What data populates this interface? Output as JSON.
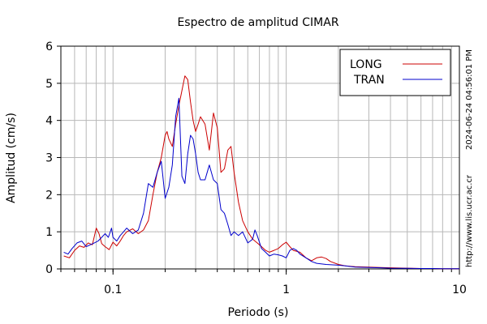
{
  "chart_data": {
    "type": "line",
    "title": "Espectro de amplitud CIMAR",
    "xlabel": "Periodo (s)",
    "ylabel": "Amplitud (cm/s)",
    "xscale": "log",
    "xlim": [
      0.05,
      10
    ],
    "ylim": [
      0,
      6
    ],
    "xtick_labels": [
      "0.1",
      "1",
      "10"
    ],
    "xtick_values": [
      0.1,
      1,
      10
    ],
    "ytick_values": [
      0,
      1,
      2,
      3,
      4,
      5,
      6
    ],
    "grid": true,
    "legend_position": "top-right",
    "series": [
      {
        "name": "LONG",
        "color": "#cc0000",
        "points": [
          [
            0.052,
            0.35
          ],
          [
            0.056,
            0.3
          ],
          [
            0.06,
            0.5
          ],
          [
            0.064,
            0.62
          ],
          [
            0.068,
            0.58
          ],
          [
            0.072,
            0.7
          ],
          [
            0.076,
            0.65
          ],
          [
            0.08,
            1.1
          ],
          [
            0.083,
            0.95
          ],
          [
            0.086,
            0.68
          ],
          [
            0.09,
            0.6
          ],
          [
            0.095,
            0.52
          ],
          [
            0.1,
            0.72
          ],
          [
            0.105,
            0.62
          ],
          [
            0.11,
            0.75
          ],
          [
            0.115,
            0.9
          ],
          [
            0.12,
            1.0
          ],
          [
            0.13,
            1.08
          ],
          [
            0.14,
            0.95
          ],
          [
            0.15,
            1.05
          ],
          [
            0.16,
            1.3
          ],
          [
            0.17,
            2.0
          ],
          [
            0.18,
            2.6
          ],
          [
            0.19,
            3.0
          ],
          [
            0.2,
            3.6
          ],
          [
            0.205,
            3.7
          ],
          [
            0.21,
            3.5
          ],
          [
            0.22,
            3.3
          ],
          [
            0.23,
            3.9
          ],
          [
            0.24,
            4.4
          ],
          [
            0.25,
            4.8
          ],
          [
            0.26,
            5.2
          ],
          [
            0.27,
            5.1
          ],
          [
            0.28,
            4.5
          ],
          [
            0.29,
            4.0
          ],
          [
            0.3,
            3.7
          ],
          [
            0.31,
            3.9
          ],
          [
            0.32,
            4.1
          ],
          [
            0.34,
            3.9
          ],
          [
            0.36,
            3.2
          ],
          [
            0.38,
            4.2
          ],
          [
            0.4,
            3.8
          ],
          [
            0.42,
            2.6
          ],
          [
            0.44,
            2.7
          ],
          [
            0.46,
            3.2
          ],
          [
            0.48,
            3.3
          ],
          [
            0.5,
            2.6
          ],
          [
            0.53,
            1.8
          ],
          [
            0.56,
            1.3
          ],
          [
            0.6,
            1.0
          ],
          [
            0.64,
            0.8
          ],
          [
            0.68,
            0.7
          ],
          [
            0.72,
            0.6
          ],
          [
            0.76,
            0.5
          ],
          [
            0.8,
            0.45
          ],
          [
            0.85,
            0.5
          ],
          [
            0.9,
            0.55
          ],
          [
            0.95,
            0.65
          ],
          [
            1.0,
            0.72
          ],
          [
            1.05,
            0.6
          ],
          [
            1.1,
            0.5
          ],
          [
            1.2,
            0.45
          ],
          [
            1.3,
            0.3
          ],
          [
            1.4,
            0.22
          ],
          [
            1.5,
            0.3
          ],
          [
            1.6,
            0.32
          ],
          [
            1.7,
            0.28
          ],
          [
            1.8,
            0.2
          ],
          [
            2.0,
            0.12
          ],
          [
            2.2,
            0.08
          ],
          [
            2.5,
            0.06
          ],
          [
            3.0,
            0.05
          ],
          [
            3.5,
            0.04
          ],
          [
            4.0,
            0.03
          ],
          [
            5.0,
            0.02
          ],
          [
            6.0,
            0.01
          ],
          [
            7.0,
            0.01
          ],
          [
            8.0,
            0.005
          ],
          [
            10.0,
            0.005
          ]
        ]
      },
      {
        "name": "TRAN",
        "color": "#0000cc",
        "points": [
          [
            0.052,
            0.45
          ],
          [
            0.055,
            0.4
          ],
          [
            0.058,
            0.55
          ],
          [
            0.062,
            0.7
          ],
          [
            0.066,
            0.75
          ],
          [
            0.07,
            0.6
          ],
          [
            0.074,
            0.65
          ],
          [
            0.078,
            0.7
          ],
          [
            0.082,
            0.75
          ],
          [
            0.086,
            0.85
          ],
          [
            0.09,
            0.95
          ],
          [
            0.094,
            0.85
          ],
          [
            0.098,
            1.1
          ],
          [
            0.1,
            0.85
          ],
          [
            0.105,
            0.75
          ],
          [
            0.11,
            0.9
          ],
          [
            0.115,
            1.0
          ],
          [
            0.12,
            1.1
          ],
          [
            0.13,
            0.95
          ],
          [
            0.14,
            1.05
          ],
          [
            0.15,
            1.5
          ],
          [
            0.16,
            2.3
          ],
          [
            0.17,
            2.2
          ],
          [
            0.18,
            2.6
          ],
          [
            0.19,
            2.9
          ],
          [
            0.2,
            1.9
          ],
          [
            0.21,
            2.2
          ],
          [
            0.22,
            2.8
          ],
          [
            0.23,
            4.1
          ],
          [
            0.24,
            4.6
          ],
          [
            0.25,
            2.5
          ],
          [
            0.26,
            2.3
          ],
          [
            0.27,
            3.1
          ],
          [
            0.28,
            3.6
          ],
          [
            0.29,
            3.5
          ],
          [
            0.3,
            3.1
          ],
          [
            0.31,
            2.6
          ],
          [
            0.32,
            2.4
          ],
          [
            0.34,
            2.4
          ],
          [
            0.36,
            2.8
          ],
          [
            0.38,
            2.4
          ],
          [
            0.4,
            2.3
          ],
          [
            0.42,
            1.6
          ],
          [
            0.44,
            1.5
          ],
          [
            0.46,
            1.2
          ],
          [
            0.48,
            0.9
          ],
          [
            0.5,
            1.0
          ],
          [
            0.53,
            0.9
          ],
          [
            0.56,
            1.0
          ],
          [
            0.6,
            0.7
          ],
          [
            0.64,
            0.8
          ],
          [
            0.66,
            1.05
          ],
          [
            0.68,
            0.9
          ],
          [
            0.72,
            0.55
          ],
          [
            0.76,
            0.45
          ],
          [
            0.8,
            0.35
          ],
          [
            0.85,
            0.4
          ],
          [
            0.9,
            0.38
          ],
          [
            0.95,
            0.35
          ],
          [
            1.0,
            0.3
          ],
          [
            1.05,
            0.5
          ],
          [
            1.1,
            0.55
          ],
          [
            1.15,
            0.5
          ],
          [
            1.2,
            0.4
          ],
          [
            1.3,
            0.3
          ],
          [
            1.4,
            0.2
          ],
          [
            1.5,
            0.15
          ],
          [
            1.7,
            0.12
          ],
          [
            2.0,
            0.1
          ],
          [
            2.2,
            0.08
          ],
          [
            2.5,
            0.05
          ],
          [
            3.0,
            0.04
          ],
          [
            3.5,
            0.03
          ],
          [
            4.0,
            0.02
          ],
          [
            5.0,
            0.015
          ],
          [
            6.0,
            0.01
          ],
          [
            7.0,
            0.01
          ],
          [
            8.0,
            0.005
          ],
          [
            10.0,
            0.005
          ]
        ]
      }
    ]
  },
  "side_labels": {
    "timestamp": "2024-06-24 04:56:01 PM",
    "url": "http://www.lis.ucr.ac.cr"
  }
}
